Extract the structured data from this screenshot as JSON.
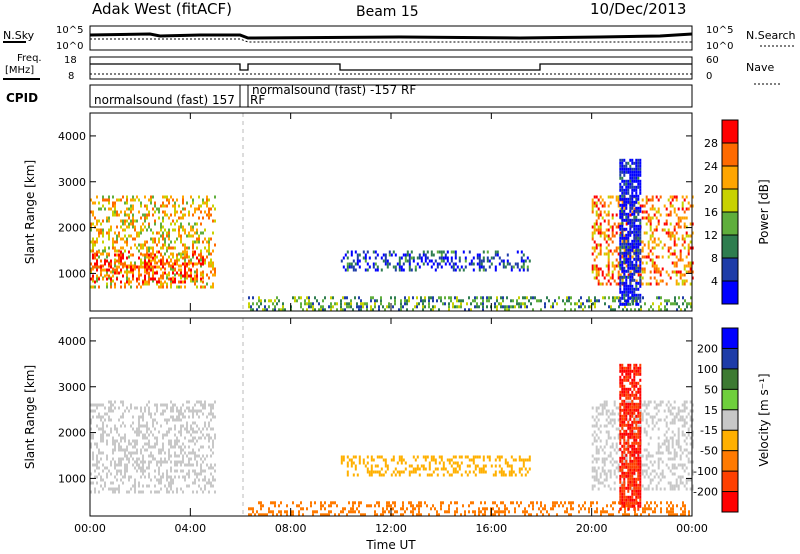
{
  "header": {
    "station": "Adak West (fitACF)",
    "beam": "Beam 15",
    "date": "10/Dec/2013"
  },
  "side_labels": {
    "nsky": "N.Sky",
    "nsearch": "N.Search",
    "freq": "Freq.",
    "freq_unit": "[MHz]",
    "nave": "Nave",
    "cpid": "CPID"
  },
  "small_axes": {
    "noise_ticks_left": [
      "10^5",
      "10^0"
    ],
    "noise_ticks_right": [
      "10^5",
      "10^0"
    ],
    "freq_ticks": [
      "18",
      "8"
    ],
    "nave_ticks": [
      "60",
      "0"
    ]
  },
  "cpid_segments": [
    {
      "label": "normalsound (fast) 157",
      "extra": "RF"
    },
    {
      "label": "normalsound (fast) -157 RF"
    }
  ],
  "chart_data": [
    {
      "type": "heatmap",
      "panel": "power",
      "ylabel": "Slant Range [km]",
      "ylim": [
        180,
        4500
      ],
      "yticks": [
        1000,
        2000,
        3000,
        4000
      ],
      "xlim_hours": [
        0,
        24
      ],
      "xticks": [
        "00:00",
        "04:00",
        "08:00",
        "12:00",
        "16:00",
        "20:00",
        "00:00"
      ],
      "colorbar": {
        "label": "Power [dB]",
        "ticks": [
          4,
          8,
          12,
          16,
          20,
          24,
          28
        ],
        "colors": [
          "#0000ff",
          "#1e3ca8",
          "#2e7d4f",
          "#5fae3c",
          "#c8d200",
          "#ffa500",
          "#ff6a00",
          "#ff0000"
        ]
      },
      "regions": [
        {
          "t": [
            0.0,
            5.0
          ],
          "r": [
            700,
            2700
          ],
          "value": 20
        },
        {
          "t": [
            0.0,
            4.5
          ],
          "r": [
            800,
            1500
          ],
          "value": 28
        },
        {
          "t": [
            6.3,
            24.0
          ],
          "r": [
            200,
            500
          ],
          "value": 12
        },
        {
          "t": [
            10.0,
            17.5
          ],
          "r": [
            1100,
            1500
          ],
          "value": 6
        },
        {
          "t": [
            20.0,
            24.0
          ],
          "r": [
            800,
            2700
          ],
          "value": 24
        },
        {
          "t": [
            21.1,
            21.9
          ],
          "r": [
            300,
            3500
          ],
          "value": 2
        }
      ]
    },
    {
      "type": "heatmap",
      "panel": "velocity",
      "ylabel": "Slant Range [km]",
      "xlabel": "Time UT",
      "ylim": [
        180,
        4500
      ],
      "yticks": [
        1000,
        2000,
        3000,
        4000
      ],
      "xlim_hours": [
        0,
        24
      ],
      "xticks": [
        "00:00",
        "04:00",
        "08:00",
        "12:00",
        "16:00",
        "20:00",
        "00:00"
      ],
      "colorbar": {
        "label": "Velocity [m s⁻¹]",
        "ticks": [
          "200",
          "100",
          "50",
          "15",
          "-15",
          "-50",
          "-100",
          "-200"
        ],
        "colors": [
          "#0000ff",
          "#1e3ca8",
          "#3d7a32",
          "#6fd03c",
          "#c8c8c8",
          "#ffb000",
          "#ff7a00",
          "#ff4000",
          "#ff0000"
        ]
      },
      "regions": [
        {
          "t": [
            0.0,
            5.0
          ],
          "r": [
            700,
            2700
          ],
          "value": 0
        },
        {
          "t": [
            6.3,
            24.0
          ],
          "r": [
            200,
            500
          ],
          "value": -60
        },
        {
          "t": [
            10.0,
            17.5
          ],
          "r": [
            1100,
            1500
          ],
          "value": -40
        },
        {
          "t": [
            20.0,
            24.0
          ],
          "r": [
            800,
            2700
          ],
          "value": 0
        },
        {
          "t": [
            21.1,
            21.9
          ],
          "r": [
            300,
            3500
          ],
          "value": -200
        }
      ]
    }
  ]
}
